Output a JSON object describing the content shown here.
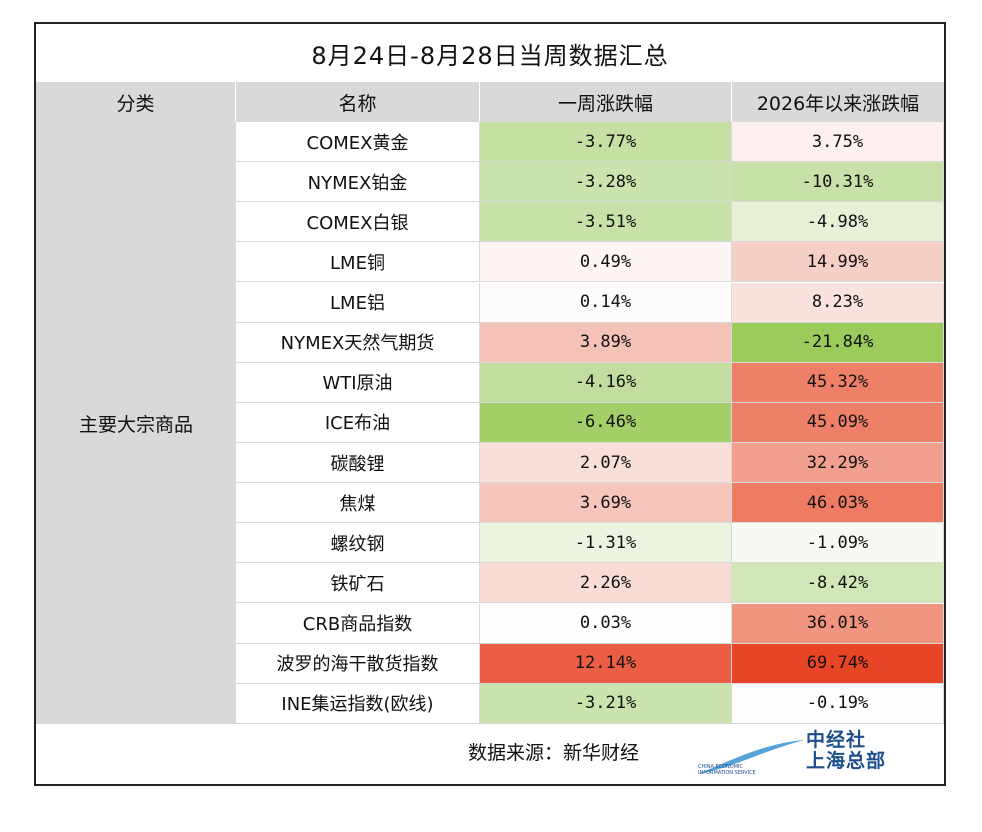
{
  "title": "8月24日-8月28日当周数据汇总",
  "headers": {
    "category": "分类",
    "name": "名称",
    "week": "一周涨跌幅",
    "ytd": "2026年以来涨跌幅"
  },
  "category": "主要大宗商品",
  "rows": [
    {
      "name": "COMEX黄金",
      "week": "-3.77%",
      "ytd": "3.75%",
      "week_color": "#c6e0a4",
      "ytd_color": "#fdf1ef"
    },
    {
      "name": "NYMEX铂金",
      "week": "-3.28%",
      "ytd": "-10.31%",
      "week_color": "#cbe3ac",
      "ytd_color": "#c8e1a8"
    },
    {
      "name": "COMEX白银",
      "week": "-3.51%",
      "ytd": "-4.98%",
      "week_color": "#c8e1a8",
      "ytd_color": "#e6f1d8"
    },
    {
      "name": "LME铜",
      "week": "0.49%",
      "ytd": "14.99%",
      "week_color": "#fdf6f5",
      "ytd_color": "#f6d0c7"
    },
    {
      "name": "LME铝",
      "week": "0.14%",
      "ytd": "8.23%",
      "week_color": "#fefcfb",
      "ytd_color": "#fae3de"
    },
    {
      "name": "NYMEX天然气期货",
      "week": "3.89%",
      "ytd": "-21.84%",
      "week_color": "#f5c2b8",
      "ytd_color": "#9ccb5c"
    },
    {
      "name": "WTI原油",
      "week": "-4.16%",
      "ytd": "45.32%",
      "week_color": "#c2dd9f",
      "ytd_color": "#ee8068"
    },
    {
      "name": "ICE布油",
      "week": "-6.46%",
      "ytd": "45.09%",
      "week_color": "#a4cf68",
      "ytd_color": "#ee8068"
    },
    {
      "name": "碳酸锂",
      "week": "2.07%",
      "ytd": "32.29%",
      "week_color": "#f9dfd9",
      "ytd_color": "#f1a08f"
    },
    {
      "name": "焦煤",
      "week": "3.69%",
      "ytd": "46.03%",
      "week_color": "#f6c6bd",
      "ytd_color": "#ed7c63"
    },
    {
      "name": "螺纹钢",
      "week": "-1.31%",
      "ytd": "-1.09%",
      "week_color": "#ebf4e1",
      "ytd_color": "#f6faf2"
    },
    {
      "name": "铁矿石",
      "week": "2.26%",
      "ytd": "-8.42%",
      "week_color": "#f9dcd5",
      "ytd_color": "#d2e7b8"
    },
    {
      "name": "CRB商品指数",
      "week": "0.03%",
      "ytd": "36.01%",
      "week_color": "#fffefe",
      "ytd_color": "#f0937f"
    },
    {
      "name": "波罗的海干散货指数",
      "week": "12.14%",
      "ytd": "69.74%",
      "week_color": "#ec5e44",
      "ytd_color": "#e84426"
    },
    {
      "name": "INE集运指数(欧线)",
      "week": "-3.21%",
      "ytd": "-0.19%",
      "week_color": "#cbe3ad",
      "ytd_color": "#fdfefc"
    }
  ],
  "footer": {
    "source": "数据来源：新华财经",
    "logo_cn_1": "中经社",
    "logo_cn_2": "上海总部",
    "logo_en_1": "CHINA ECONOMIC",
    "logo_en_2": "INFORMATION SERVICE"
  }
}
